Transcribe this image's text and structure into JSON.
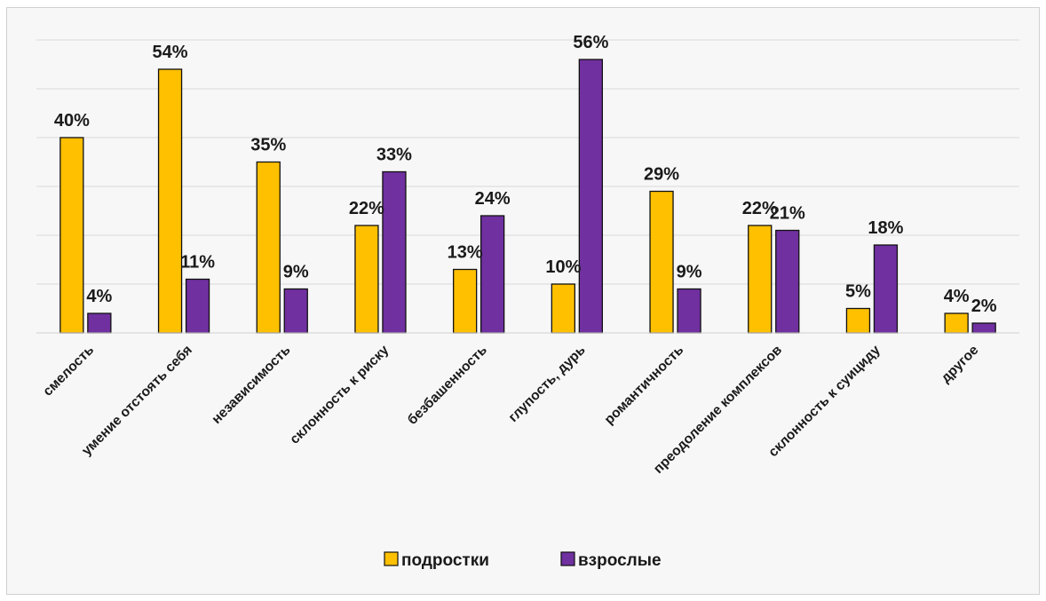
{
  "chart_data": {
    "type": "bar",
    "categories": [
      "смелость",
      "умение отстоять себя",
      "независимость",
      "склонность к риску",
      "безбашенность",
      "глупость, дурь",
      "романтичность",
      "преодоление комплексов",
      "склонность к суициду",
      "другое"
    ],
    "series": [
      {
        "name": "подростки",
        "color": "#ffc000",
        "values": [
          40,
          54,
          35,
          22,
          13,
          10,
          29,
          22,
          5,
          4
        ],
        "labels": [
          "40%",
          "54%",
          "35%",
          "22%",
          "13%",
          "10%",
          "29%",
          "22%",
          "5%",
          "4%"
        ]
      },
      {
        "name": "взрослые",
        "color": "#7030a0",
        "values": [
          4,
          11,
          9,
          33,
          24,
          56,
          9,
          21,
          18,
          2
        ],
        "labels": [
          "4%",
          "11%",
          "9%",
          "33%",
          "24%",
          "56%",
          "9%",
          "21%",
          "18%",
          "2%"
        ]
      }
    ],
    "ylim": [
      0,
      60
    ],
    "ytick_step": 10,
    "grid": true,
    "legend_position": "bottom",
    "title": "",
    "xlabel": "",
    "ylabel": ""
  }
}
